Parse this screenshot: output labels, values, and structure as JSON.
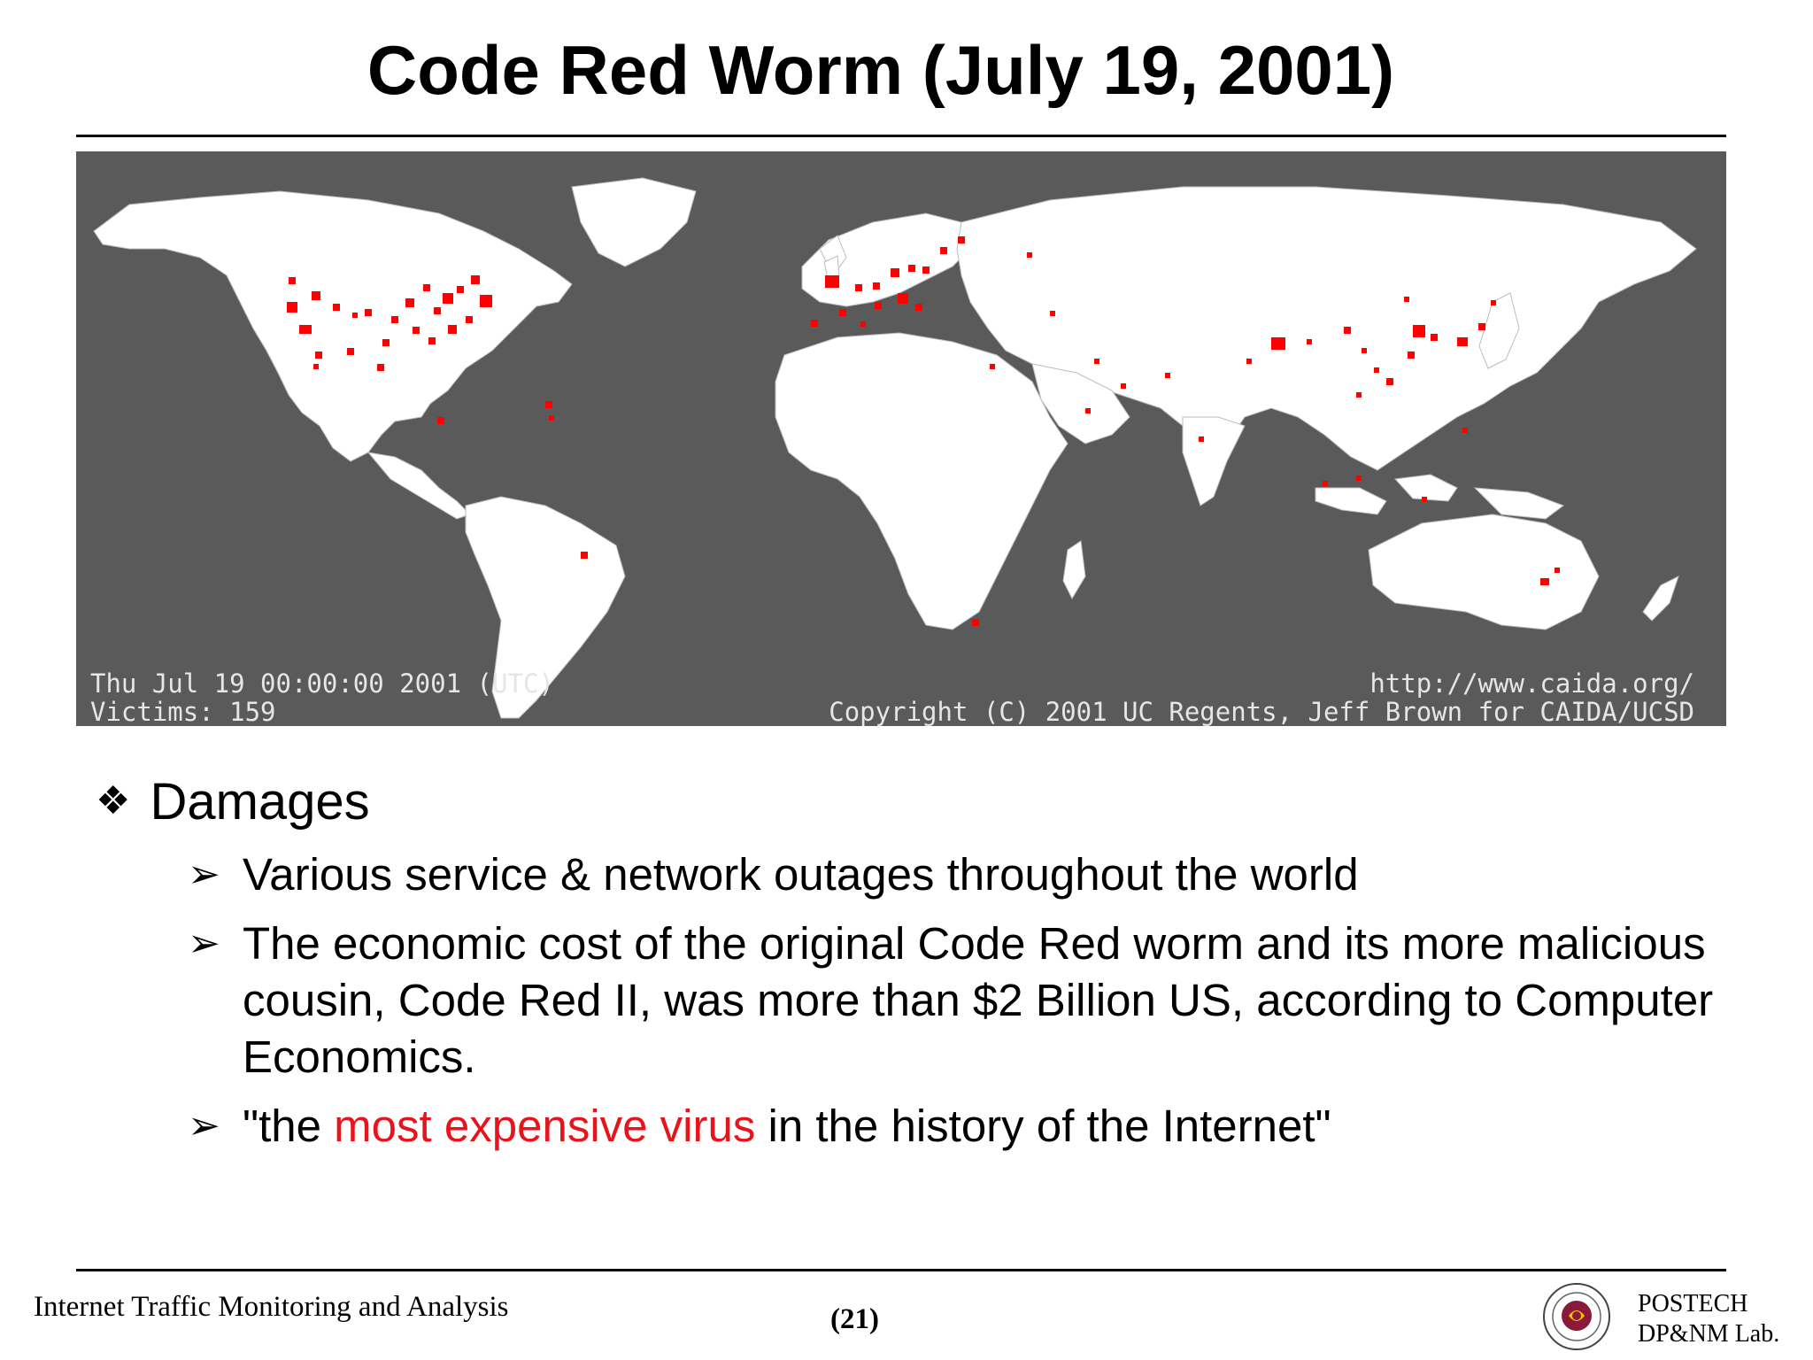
{
  "slide": {
    "title": "Code Red Worm (July 19, 2001)"
  },
  "map": {
    "icon": "world-map-image",
    "caption_date": "Thu Jul 19 00:00:00 2001 (UTC)",
    "caption_victims": "Victims: 159",
    "caption_url": "http://www.caida.org/",
    "caption_copyright": "Copyright (C) 2001 UC Regents, Jeff Brown for CAIDA/UCSD",
    "land_color": "#ffffff",
    "ocean_color": "#5a5a5a",
    "marker_color": "#ff0000"
  },
  "content": {
    "main_bullet_symbol": "❖",
    "main_bullet": "Damages",
    "sub_bullet_symbol": "➢",
    "sub1": "Various service & network outages throughout the world",
    "sub2": "The economic cost of the original Code Red worm and its more malicious cousin, Code Red II, was more than $2 Billion US, according to Computer Economics.",
    "sub3_before": "\"the ",
    "sub3_highlight": "most expensive virus",
    "sub3_after": " in the history of the Internet\"",
    "highlight_color": "#e8141b"
  },
  "footer": {
    "left": "Internet Traffic Monitoring and Analysis",
    "page": "(21)",
    "org_line1": "POSTECH",
    "org_line2": "DP&NM Lab.",
    "logo_icon": "postech-seal-icon"
  }
}
